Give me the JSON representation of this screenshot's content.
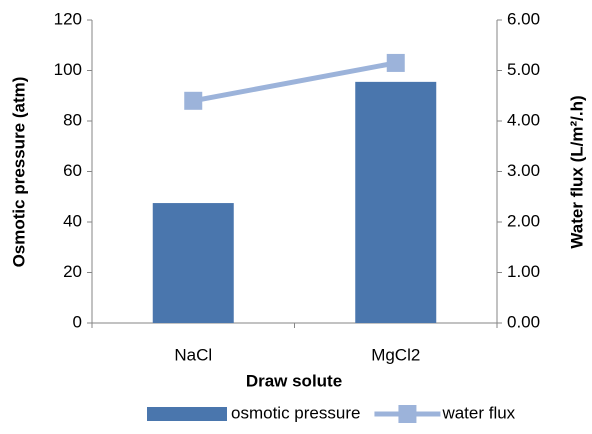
{
  "chart_data": {
    "type": "bar",
    "x_label": "Draw solute",
    "y_label": "Osmotic pressure (atm)",
    "y2_label": "Water flux (L/m²/.h)",
    "categories": [
      "NaCl",
      "MgCl2"
    ],
    "series": [
      {
        "name": "osmotic pressure",
        "type": "bar",
        "color": "#4a76ad",
        "values": [
          47.5,
          95.5
        ]
      },
      {
        "name": "water flux",
        "type": "line",
        "axis": "y2",
        "color": "#9cb3da",
        "values": [
          4.4,
          5.15
        ]
      }
    ],
    "ylim": [
      0,
      120
    ],
    "yticks": [
      0,
      20,
      40,
      60,
      80,
      100,
      120
    ],
    "y2lim": [
      0,
      6
    ],
    "y2ticks": [
      {
        "value": 0,
        "label": "0.00"
      },
      {
        "value": 1,
        "label": "1.00"
      },
      {
        "value": 2,
        "label": "2.00"
      },
      {
        "value": 3,
        "label": "3.00"
      },
      {
        "value": 4,
        "label": "4.00"
      },
      {
        "value": 5,
        "label": "5.00"
      },
      {
        "value": 6,
        "label": "6.00"
      }
    ],
    "grid": false,
    "legend": "bottom"
  }
}
